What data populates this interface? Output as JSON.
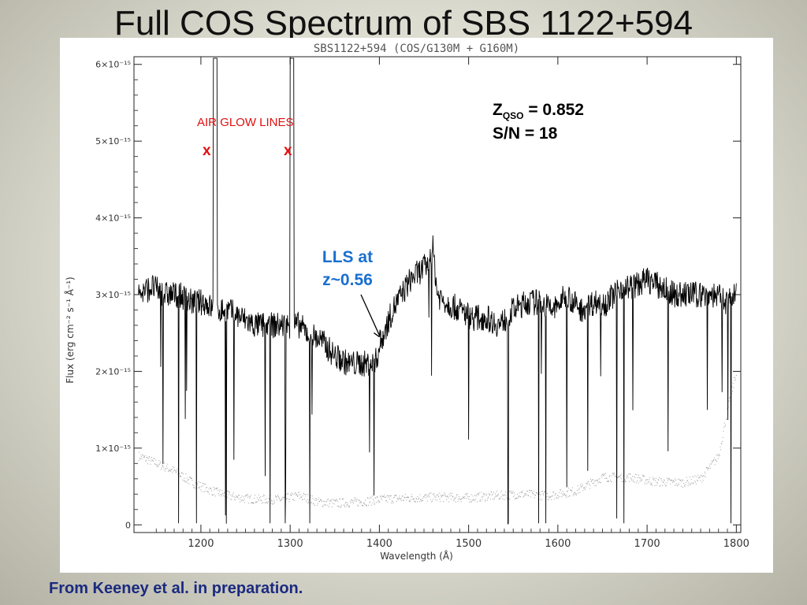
{
  "slide": {
    "title": "Full COS Spectrum of SBS 1122+594",
    "caption": "From Keeney et al. in preparation."
  },
  "chart_data": {
    "type": "line",
    "title": "SBS1122+594 (COS/G130M + G160M)",
    "xlabel": "Wavelength (Å)",
    "ylabel": "Flux (erg cm⁻² s⁻¹ Å⁻¹)",
    "xlim": [
      1125,
      1805
    ],
    "ylim": [
      -0.1,
      6.1
    ],
    "x_ticks": [
      1200,
      1300,
      1400,
      1500,
      1600,
      1700,
      1800
    ],
    "y_ticks": [
      0,
      1,
      2,
      3,
      4,
      5,
      6
    ],
    "y_tick_labels": [
      "0",
      "1×10⁻¹⁵",
      "2×10⁻¹⁵",
      "3×10⁻¹⁵",
      "4×10⁻¹⁵",
      "5×10⁻¹⁵",
      "6×10⁻¹⁵"
    ],
    "y_units_scale": "1e-15",
    "grid": false,
    "series": [
      {
        "role": "flux",
        "color": "#000000",
        "x": [
          1130,
          1145,
          1160,
          1175,
          1190,
          1205,
          1214,
          1216,
          1219,
          1230,
          1245,
          1260,
          1275,
          1290,
          1300,
          1302,
          1305,
          1310,
          1320,
          1335,
          1350,
          1365,
          1380,
          1395,
          1405,
          1415,
          1425,
          1435,
          1445,
          1455,
          1460,
          1465,
          1475,
          1490,
          1505,
          1520,
          1535,
          1550,
          1565,
          1580,
          1595,
          1610,
          1625,
          1640,
          1655,
          1670,
          1685,
          1700,
          1715,
          1730,
          1745,
          1760,
          1775,
          1790,
          1800
        ],
        "y": [
          3.0,
          3.1,
          3.0,
          3.0,
          2.9,
          2.9,
          2.8,
          6.0,
          2.8,
          2.8,
          2.7,
          2.6,
          2.6,
          2.6,
          2.6,
          6.0,
          2.6,
          2.6,
          2.5,
          2.4,
          2.2,
          2.1,
          2.1,
          2.1,
          2.5,
          2.8,
          3.0,
          3.2,
          3.3,
          3.4,
          3.6,
          3.0,
          2.9,
          2.8,
          2.7,
          2.7,
          2.6,
          2.8,
          2.9,
          2.9,
          2.8,
          3.0,
          2.8,
          2.9,
          2.9,
          3.1,
          3.1,
          3.2,
          3.1,
          3.0,
          3.0,
          3.0,
          3.0,
          2.9,
          3.0
        ]
      },
      {
        "role": "error",
        "color": "#8a8a8a",
        "x": [
          1130,
          1150,
          1170,
          1190,
          1210,
          1230,
          1250,
          1270,
          1290,
          1310,
          1330,
          1350,
          1380,
          1410,
          1440,
          1470,
          1500,
          1530,
          1560,
          1590,
          1620,
          1650,
          1680,
          1710,
          1740,
          1760,
          1780,
          1790,
          1800
        ],
        "y": [
          0.9,
          0.8,
          0.7,
          0.55,
          0.45,
          0.38,
          0.34,
          0.33,
          0.33,
          0.38,
          0.3,
          0.28,
          0.3,
          0.34,
          0.35,
          0.36,
          0.35,
          0.38,
          0.4,
          0.38,
          0.44,
          0.62,
          0.62,
          0.56,
          0.55,
          0.6,
          0.9,
          1.5,
          2.0
        ]
      }
    ],
    "annotations": {
      "airglow": "AIR GLOW LINES",
      "airglow_marker": "x",
      "airglow_wavelengths": [
        1216,
        1302
      ],
      "zqso_symbol": "Z",
      "zqso_subscript": "QSO",
      "zqso_value": " = 0.852",
      "sn": "S/N = 18",
      "lls_line1": "LLS at",
      "lls_line2": "z~0.56",
      "lls_arrow_target": [
        1400,
        2.45
      ]
    }
  }
}
